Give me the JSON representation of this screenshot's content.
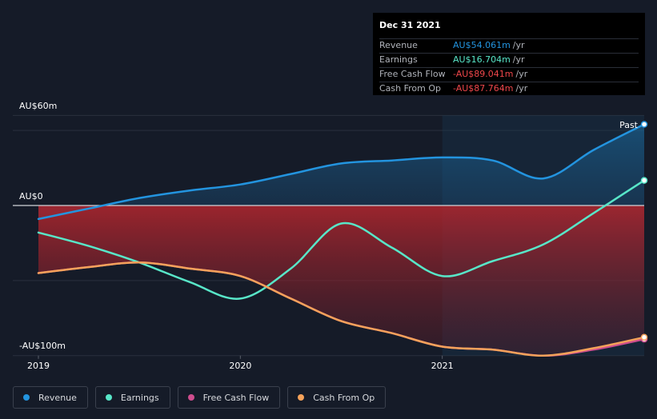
{
  "chart_data": {
    "type": "area",
    "y_axis": {
      "top_label": "AU$60m",
      "zero_label": "AU$0",
      "bottom_label": "-AU$100m",
      "ylim": [
        -100,
        60
      ]
    },
    "x_axis": {
      "ticks": [
        {
          "label": "2019",
          "x": 2019.0
        },
        {
          "label": "2020",
          "x": 2020.0
        },
        {
          "label": "2021",
          "x": 2021.0
        }
      ],
      "xlim": [
        2019.0,
        2022.0
      ]
    },
    "past_label": "Past",
    "series": [
      {
        "name": "Revenue",
        "color": "#2394df",
        "x": [
          2019.0,
          2019.25,
          2019.5,
          2019.75,
          2020.0,
          2020.25,
          2020.5,
          2020.75,
          2021.0,
          2021.25,
          2021.5,
          2021.75,
          2022.0
        ],
        "y": [
          -9,
          -2,
          5,
          10,
          14,
          21,
          28,
          30,
          32,
          30,
          18,
          37,
          54.061
        ]
      },
      {
        "name": "Earnings",
        "color": "#58e6c8",
        "x": [
          2019.0,
          2019.25,
          2019.5,
          2019.75,
          2020.0,
          2020.25,
          2020.5,
          2020.75,
          2021.0,
          2021.25,
          2021.5,
          2021.75,
          2022.0
        ],
        "y": [
          -18,
          -27,
          -38,
          -51,
          -62,
          -42,
          -12,
          -28,
          -47,
          -37,
          -26,
          -5,
          16.704
        ]
      },
      {
        "name": "Free Cash Flow",
        "color": "#cf4d8e",
        "x": [
          2019.0,
          2019.25,
          2019.5,
          2019.75,
          2020.0,
          2020.25,
          2020.5,
          2020.75,
          2021.0,
          2021.25,
          2021.5,
          2021.75,
          2022.0
        ],
        "y": [
          -45,
          -41,
          -38,
          -42,
          -47,
          -62,
          -77,
          -85,
          -94,
          -96,
          -100,
          -96,
          -89.041
        ]
      },
      {
        "name": "Cash From Op",
        "color": "#f5a25a",
        "x": [
          2019.0,
          2019.25,
          2019.5,
          2019.75,
          2020.0,
          2020.25,
          2020.5,
          2020.75,
          2021.0,
          2021.25,
          2021.5,
          2021.75,
          2022.0
        ],
        "y": [
          -45,
          -41,
          -38,
          -42,
          -47,
          -62,
          -77,
          -85,
          -94,
          -96,
          -100,
          -95,
          -87.764
        ]
      }
    ],
    "tooltip": {
      "date": "Dec 31 2021",
      "rows": [
        {
          "label": "Revenue",
          "value": "AU$54.061m",
          "unit": "/yr",
          "color": "#2394df"
        },
        {
          "label": "Earnings",
          "value": "AU$16.704m",
          "unit": "/yr",
          "color": "#58e6c8"
        },
        {
          "label": "Free Cash Flow",
          "value": "-AU$89.041m",
          "unit": "/yr",
          "color": "#f0474b"
        },
        {
          "label": "Cash From Op",
          "value": "-AU$87.764m",
          "unit": "/yr",
          "color": "#f0474b"
        }
      ]
    },
    "legend": [
      {
        "label": "Revenue",
        "color": "#2394df"
      },
      {
        "label": "Earnings",
        "color": "#58e6c8"
      },
      {
        "label": "Free Cash Flow",
        "color": "#cf4d8e"
      },
      {
        "label": "Cash From Op",
        "color": "#f5a25a"
      }
    ]
  }
}
